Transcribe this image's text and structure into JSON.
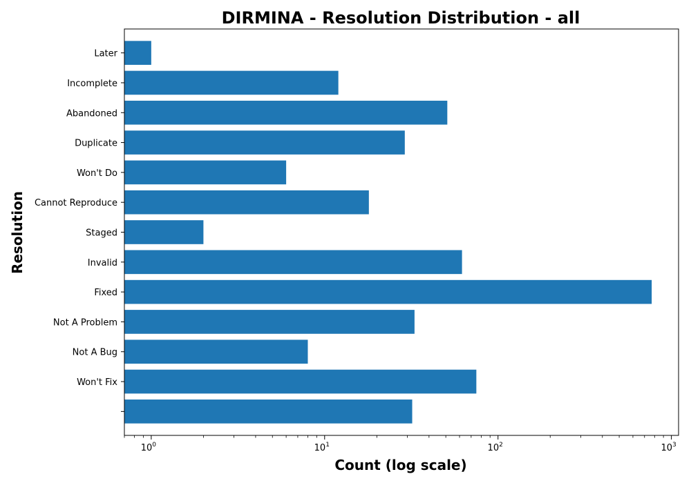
{
  "chart_data": {
    "type": "bar",
    "orientation": "horizontal",
    "title": "DIRMINA - Resolution Distribution - all",
    "xlabel": "Count (log scale)",
    "ylabel": "Resolution",
    "xscale": "log",
    "xlim": [
      0.7,
      1100
    ],
    "x_ticks": [
      {
        "value": 1,
        "base": "10",
        "exp": "0"
      },
      {
        "value": 10,
        "base": "10",
        "exp": "1"
      },
      {
        "value": 100,
        "base": "10",
        "exp": "2"
      },
      {
        "value": 1000,
        "base": "10",
        "exp": "3"
      }
    ],
    "categories": [
      "",
      "Won't Fix",
      "Not A Bug",
      "Not A Problem",
      "Fixed",
      "Invalid",
      "Staged",
      "Cannot Reproduce",
      "Won't Do",
      "Duplicate",
      "Abandoned",
      "Incomplete",
      "Later"
    ],
    "values": [
      32,
      75,
      8,
      33,
      770,
      62,
      2,
      18,
      6,
      29,
      51,
      12,
      1
    ],
    "bar_color": "#1f77b4",
    "grid": false,
    "legend": false
  }
}
